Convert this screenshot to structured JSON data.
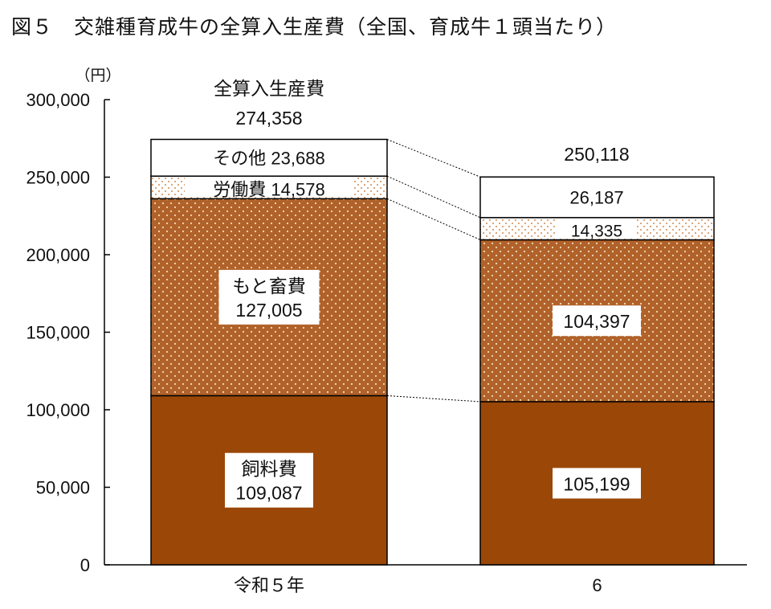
{
  "chart_data": {
    "type": "bar",
    "stacked": true,
    "title": "図５　交雑種育成牛の全算入生産費（全国、育成牛１頭当たり）",
    "ylabel": "（円）",
    "ylim": [
      0,
      300000
    ],
    "yticks": [
      "0",
      "50,000",
      "100,000",
      "150,000",
      "200,000",
      "250,000",
      "300,000"
    ],
    "categories": [
      "令和５年",
      "6"
    ],
    "total_label": "全算入生産費",
    "totals": [
      "274,358",
      "250,118"
    ],
    "series": [
      {
        "name": "飼料費",
        "values": [
          109087,
          105199
        ],
        "labels": [
          "109,087",
          "105,199"
        ],
        "color": "#9a4708"
      },
      {
        "name": "もと畜費",
        "values": [
          127005,
          104397
        ],
        "labels": [
          "127,005",
          "104,397"
        ],
        "color": "#b0622a"
      },
      {
        "name": "労働費",
        "values": [
          14578,
          14335
        ],
        "labels": [
          "14,578",
          "14,335"
        ],
        "color": "#ffffff"
      },
      {
        "name": "その他",
        "values": [
          23688,
          26187
        ],
        "labels": [
          "23,688",
          "26,187"
        ],
        "color": "#ffffff"
      }
    ],
    "grid": false,
    "connector_lines": "dotted"
  }
}
